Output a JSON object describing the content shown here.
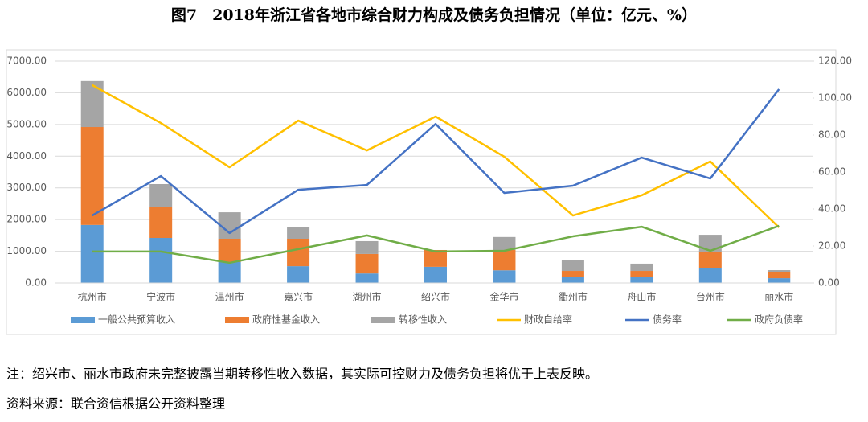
{
  "chart_data": {
    "type": "bar",
    "title": "图7　2018年浙江省各地市综合财力构成及债务负担情况（单位：亿元、%）",
    "categories": [
      "杭州市",
      "宁波市",
      "温州市",
      "嘉兴市",
      "湖州市",
      "绍兴市",
      "金华市",
      "衢州市",
      "舟山市",
      "台州市",
      "丽水市"
    ],
    "series": [
      {
        "name": "一般公共预算收入",
        "type": "bar",
        "color": "#5b9bd5",
        "values": [
          1830,
          1420,
          660,
          530,
          300,
          510,
          400,
          180,
          180,
          460,
          150
        ]
      },
      {
        "name": "政府性基金收入",
        "type": "bar",
        "color": "#ed7d31",
        "values": [
          3090,
          965,
          735,
          865,
          615,
          530,
          640,
          200,
          200,
          530,
          205
        ]
      },
      {
        "name": "转移性收入",
        "type": "bar",
        "color": "#a5a5a5",
        "values": [
          1450,
          735,
          835,
          380,
          405,
          0,
          410,
          330,
          230,
          530,
          50
        ]
      },
      {
        "name": "财政自给率",
        "type": "line",
        "axis": "y2",
        "color": "#ffc000",
        "values": [
          107,
          86.5,
          62.6,
          87.8,
          71.7,
          90,
          68.3,
          36.5,
          47.4,
          65.7,
          30
        ]
      },
      {
        "name": "债务率",
        "type": "line",
        "axis": "y2",
        "color": "#4472c4",
        "values": [
          36.5,
          57.8,
          27,
          50.4,
          53,
          86,
          48.7,
          52.6,
          67.8,
          56.5,
          104.8
        ]
      },
      {
        "name": "政府负债率",
        "type": "line",
        "axis": "y2",
        "color": "#70ad47",
        "values": [
          17,
          17,
          10.9,
          18.3,
          25.7,
          17,
          17.4,
          25.2,
          30.4,
          17.4,
          30.9
        ]
      }
    ],
    "ylim": [
      0,
      7000
    ],
    "yticks": [
      {
        "value": 0,
        "label": "0.00"
      },
      {
        "value": 1000,
        "label": "1000.00"
      },
      {
        "value": 2000,
        "label": "2000.00"
      },
      {
        "value": 3000,
        "label": "3000.00"
      },
      {
        "value": 4000,
        "label": "4000.00"
      },
      {
        "value": 5000,
        "label": "5000.00"
      },
      {
        "value": 6000,
        "label": "6000.00"
      },
      {
        "value": 7000,
        "label": "7000.00"
      }
    ],
    "y2lim": [
      0,
      120
    ],
    "y2ticks": [
      {
        "value": 0,
        "label": "0.00"
      },
      {
        "value": 20,
        "label": "20.00"
      },
      {
        "value": 40,
        "label": "40.00"
      },
      {
        "value": 60,
        "label": "60.00"
      },
      {
        "value": 80,
        "label": "80.00"
      },
      {
        "value": 100,
        "label": "100.00"
      },
      {
        "value": 120,
        "label": "120.00"
      }
    ],
    "grid": true,
    "legend": "bottom"
  },
  "notes": [
    "注：绍兴市、丽水市政府未完整披露当期转移性收入数据，其实际可控财力及债务负担将优于上表反映。",
    "资料来源：联合资信根据公开资料整理"
  ]
}
